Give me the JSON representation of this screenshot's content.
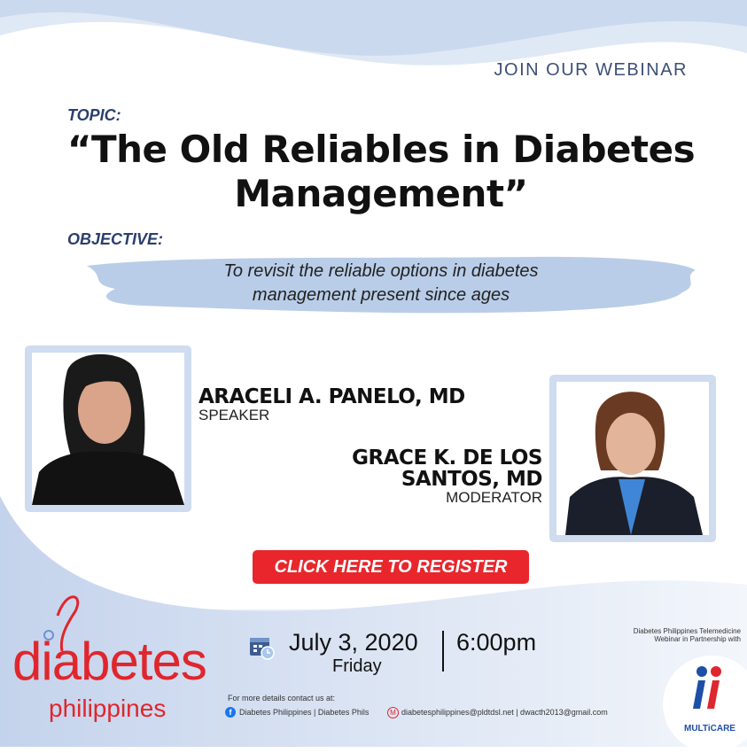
{
  "header": {
    "join_label": "JOIN OUR WEBINAR"
  },
  "topic": {
    "label": "TOPIC:",
    "title_line1": "“The Old Reliables in Diabetes",
    "title_line2": "Management”"
  },
  "objective": {
    "label": "OBJECTIVE:",
    "text_line1": "To revisit the reliable options in diabetes",
    "text_line2": "management present since ages"
  },
  "speakers": [
    {
      "name": "ARACELI A. PANELO, MD",
      "role": "SPEAKER"
    },
    {
      "name_line1": "GRACE K. DE LOS",
      "name_line2": "SANTOS, MD",
      "role": "MODERATOR"
    }
  ],
  "register_button": "CLICK HERE TO REGISTER",
  "event": {
    "date": "July 3, 2020",
    "day": "Friday",
    "time": "6:00pm",
    "icon": "calendar-clock-icon"
  },
  "contact": {
    "intro": "For more details contact us at:",
    "facebook": "Diabetes Philippines | Diabetes Phils",
    "emails": "diabetesphilippines@pldtdsl.net | dwacth2013@gmail.com"
  },
  "partner": {
    "line1": "Diabetes Philippines Telemedicine",
    "line2": "Webinar in Partnership with",
    "logo_text": "MULTiCARE"
  },
  "logo": {
    "word1": "diabetes",
    "word2": "philippines"
  },
  "colors": {
    "accent_red": "#e8262c",
    "navy": "#2b3f6c",
    "light_blue": "#cfdcef"
  }
}
